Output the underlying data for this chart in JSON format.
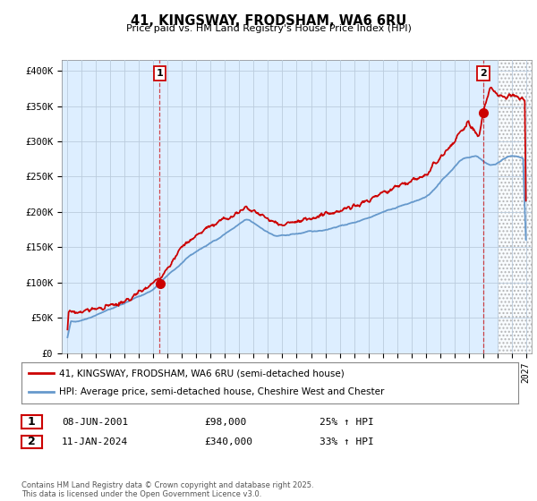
{
  "title": "41, KINGSWAY, FRODSHAM, WA6 6RU",
  "subtitle": "Price paid vs. HM Land Registry's House Price Index (HPI)",
  "ylabel_ticks": [
    "£0",
    "£50K",
    "£100K",
    "£150K",
    "£200K",
    "£250K",
    "£300K",
    "£350K",
    "£400K"
  ],
  "ytick_values": [
    0,
    50000,
    100000,
    150000,
    200000,
    250000,
    300000,
    350000,
    400000
  ],
  "ylim": [
    0,
    415000
  ],
  "xlim_start": 1994.6,
  "xlim_end": 2027.4,
  "red_color": "#cc0000",
  "blue_color": "#6699cc",
  "chart_bg_color": "#ddeeff",
  "point1_x": 2001.44,
  "point1_y": 98000,
  "point2_x": 2024.03,
  "point2_y": 340000,
  "legend_label1": "41, KINGSWAY, FRODSHAM, WA6 6RU (semi-detached house)",
  "legend_label2": "HPI: Average price, semi-detached house, Cheshire West and Chester",
  "annotation1_num": "1",
  "annotation1_date": "08-JUN-2001",
  "annotation1_price": "£98,000",
  "annotation1_hpi": "25% ↑ HPI",
  "annotation2_num": "2",
  "annotation2_date": "11-JAN-2024",
  "annotation2_price": "£340,000",
  "annotation2_hpi": "33% ↑ HPI",
  "footer": "Contains HM Land Registry data © Crown copyright and database right 2025.\nThis data is licensed under the Open Government Licence v3.0.",
  "bg_color": "#ffffff",
  "grid_color": "#bbccdd",
  "hatch_start": 2025.0
}
